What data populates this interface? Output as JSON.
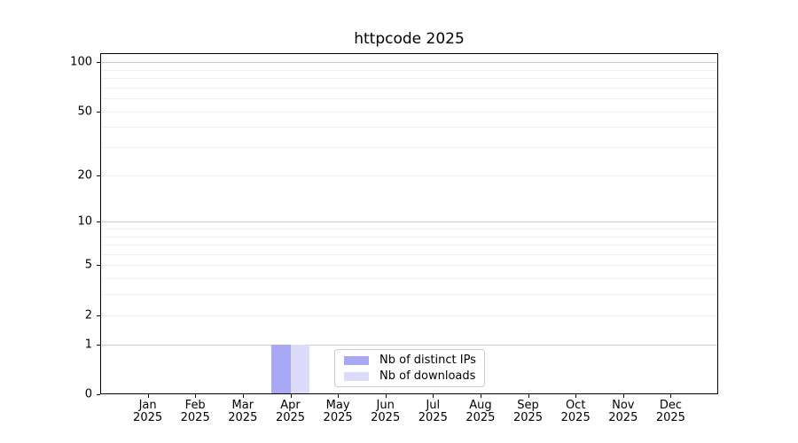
{
  "chart_data": {
    "type": "bar",
    "title": "httpcode 2025",
    "year_label": "2025",
    "months": [
      "Jan",
      "Feb",
      "Mar",
      "Apr",
      "May",
      "Jun",
      "Jul",
      "Aug",
      "Sep",
      "Oct",
      "Nov",
      "Dec"
    ],
    "series": [
      {
        "name": "Nb of distinct IPs",
        "color": "#a8a8f5",
        "values": [
          0,
          0,
          0,
          1,
          0,
          0,
          0,
          0,
          0,
          0,
          0,
          0
        ]
      },
      {
        "name": "Nb of downloads",
        "color": "#dcdcfa",
        "values": [
          0,
          0,
          0,
          1,
          0,
          0,
          0,
          0,
          0,
          0,
          0,
          0
        ]
      }
    ],
    "y_axis": {
      "scale": "log1p",
      "tick_values": [
        0,
        1,
        2,
        5,
        10,
        20,
        50,
        100
      ],
      "major_grid": [
        1,
        10,
        100
      ],
      "minor_grid": [
        2,
        3,
        4,
        5,
        6,
        7,
        8,
        9,
        20,
        30,
        40,
        50,
        60,
        70,
        80,
        90
      ],
      "ylim": [
        0,
        110
      ]
    },
    "x_axis": {
      "tick_label_format": "month-over-year"
    },
    "legend": {
      "position": "lower center"
    },
    "grid": {
      "major_color": "#cccccc",
      "minor_color": "#f0f0f0"
    }
  }
}
